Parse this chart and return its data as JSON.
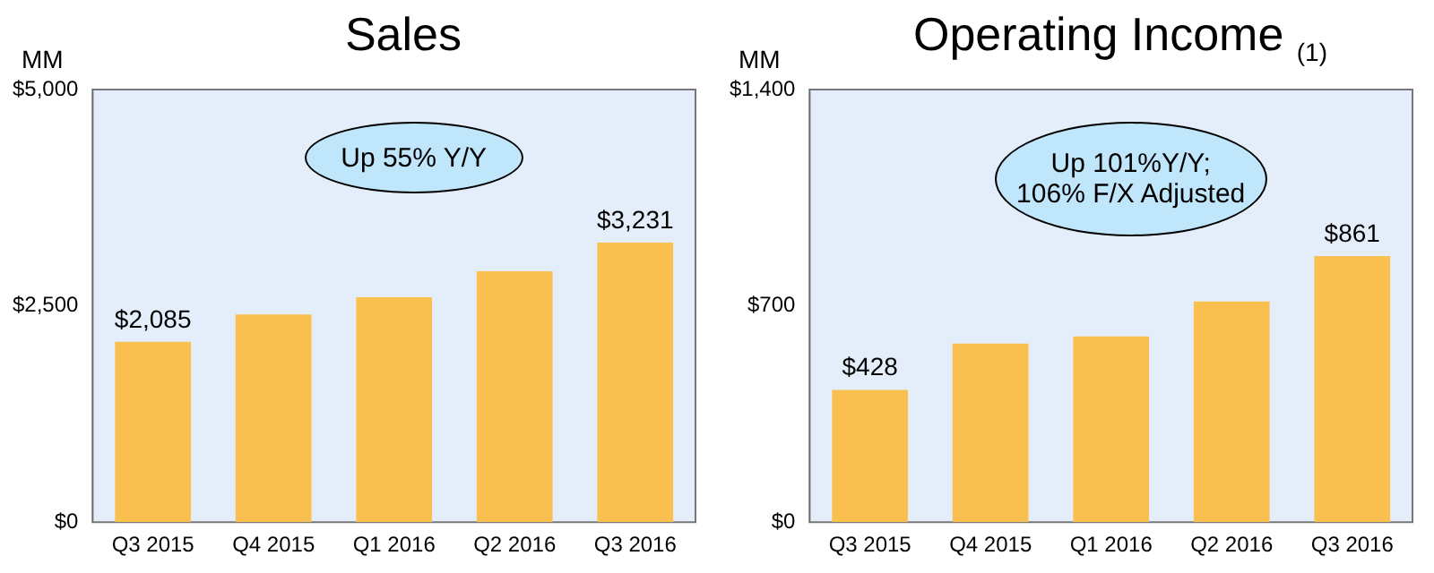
{
  "chart_data": [
    {
      "type": "bar",
      "title": "Sales",
      "ylabel": "MM",
      "categories": [
        "Q3 2015",
        "Q4 2015",
        "Q1 2016",
        "Q2 2016",
        "Q3 2016"
      ],
      "values": [
        2085,
        2400,
        2600,
        2900,
        3231
      ],
      "value_labels": [
        "$2,085",
        null,
        null,
        null,
        "$3,231"
      ],
      "color": "#f9c04f",
      "ylim": [
        0,
        5000
      ],
      "yticks": [
        {
          "value": 0,
          "label": "$0"
        },
        {
          "value": 2500,
          "label": "$2,500"
        },
        {
          "value": 5000,
          "label": "$5,000"
        }
      ],
      "grid": false,
      "legend": false,
      "annotations": [
        "Up 55% Y/Y"
      ]
    },
    {
      "type": "bar",
      "title": "Operating Income $_{(1)}$",
      "ylabel": "MM",
      "categories": [
        "Q3 2015",
        "Q4 2015",
        "Q1 2016",
        "Q2 2016",
        "Q3 2016"
      ],
      "values": [
        428,
        578,
        601,
        714,
        861
      ],
      "value_labels": [
        "$428",
        null,
        null,
        null,
        "$861"
      ],
      "color": "#f9c04f",
      "ylim": [
        0,
        1400
      ],
      "yticks": [
        {
          "value": 0,
          "label": "$0"
        },
        {
          "value": 700,
          "label": "$700"
        },
        {
          "value": 1400,
          "label": "$1,400"
        }
      ],
      "grid": false,
      "legend": false,
      "annotations": [
        "Up 101%Y/Y;\n106% F/X Adjusted"
      ]
    }
  ]
}
